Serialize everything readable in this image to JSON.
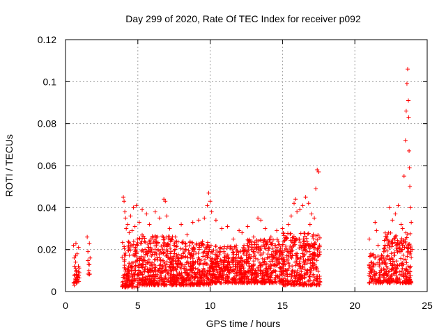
{
  "chart_data": {
    "type": "scatter",
    "title": "Day 299 of 2020, Rate Of TEC Index for receiver p092",
    "xlabel": "GPS time / hours",
    "ylabel": "ROTI / TECUs",
    "xlim": [
      0,
      25
    ],
    "ylim": [
      0,
      0.12
    ],
    "xticks": [
      0,
      5,
      10,
      15,
      20,
      25
    ],
    "yticks": [
      0,
      0.02,
      0.04,
      0.06,
      0.08,
      0.1,
      0.12
    ],
    "xtick_labels": [
      "0",
      "5",
      "10",
      "15",
      "20",
      "25"
    ],
    "ytick_labels": [
      "0",
      "0.02",
      "0.04",
      "0.06",
      "0.08",
      "0.1",
      "0.12"
    ],
    "grid": true,
    "marker": "plus",
    "color": "#ff0000",
    "series": [
      {
        "points": [
          [
            0.55,
            0.022
          ],
          [
            0.6,
            0.016
          ],
          [
            0.62,
            0.012
          ],
          [
            0.65,
            0.008
          ],
          [
            0.68,
            0.006
          ],
          [
            0.7,
            0.014
          ],
          [
            0.72,
            0.023
          ],
          [
            0.75,
            0.01
          ],
          [
            0.78,
            0.005
          ],
          [
            0.8,
            0.018
          ],
          [
            0.85,
            0.007
          ],
          [
            0.9,
            0.021
          ],
          [
            0.95,
            0.009
          ],
          [
            0.6,
            0.003
          ],
          [
            0.7,
            0.017
          ],
          [
            1.5,
            0.026
          ],
          [
            1.55,
            0.019
          ],
          [
            1.6,
            0.013
          ],
          [
            1.62,
            0.01
          ],
          [
            1.65,
            0.023
          ],
          [
            1.7,
            0.016
          ],
          [
            4.0,
            0.045
          ],
          [
            4.05,
            0.043
          ],
          [
            4.1,
            0.038
          ],
          [
            4.15,
            0.035
          ],
          [
            4.2,
            0.03
          ],
          [
            4.3,
            0.032
          ],
          [
            4.4,
            0.028
          ],
          [
            4.5,
            0.036
          ],
          [
            4.6,
            0.029
          ],
          [
            4.7,
            0.04
          ],
          [
            4.8,
            0.031
          ],
          [
            4.9,
            0.041
          ],
          [
            5.1,
            0.033
          ],
          [
            5.3,
            0.039
          ],
          [
            5.6,
            0.037
          ],
          [
            5.8,
            0.032
          ],
          [
            6.2,
            0.038
          ],
          [
            6.5,
            0.035
          ],
          [
            6.8,
            0.044
          ],
          [
            6.9,
            0.043
          ],
          [
            7.0,
            0.036
          ],
          [
            7.2,
            0.03
          ],
          [
            7.6,
            0.026
          ],
          [
            8.0,
            0.032
          ],
          [
            8.4,
            0.027
          ],
          [
            8.8,
            0.033
          ],
          [
            9.2,
            0.034
          ],
          [
            9.6,
            0.035
          ],
          [
            9.8,
            0.041
          ],
          [
            9.9,
            0.047
          ],
          [
            10.0,
            0.043
          ],
          [
            10.1,
            0.038
          ],
          [
            10.4,
            0.034
          ],
          [
            10.8,
            0.03
          ],
          [
            11.2,
            0.031
          ],
          [
            11.6,
            0.025
          ],
          [
            12.0,
            0.029
          ],
          [
            12.2,
            0.028
          ],
          [
            12.6,
            0.031
          ],
          [
            13.0,
            0.026
          ],
          [
            13.3,
            0.035
          ],
          [
            13.5,
            0.034
          ],
          [
            13.8,
            0.03
          ],
          [
            14.2,
            0.026
          ],
          [
            14.6,
            0.029
          ],
          [
            15.0,
            0.03
          ],
          [
            15.4,
            0.032
          ],
          [
            15.6,
            0.036
          ],
          [
            15.8,
            0.042
          ],
          [
            15.9,
            0.044
          ],
          [
            16.0,
            0.038
          ],
          [
            16.2,
            0.039
          ],
          [
            16.4,
            0.041
          ],
          [
            16.6,
            0.045
          ],
          [
            16.8,
            0.042
          ],
          [
            17.0,
            0.037
          ],
          [
            17.2,
            0.035
          ],
          [
            17.4,
            0.058
          ],
          [
            17.5,
            0.057
          ],
          [
            17.3,
            0.049
          ],
          [
            16.9,
            0.032
          ],
          [
            21.0,
            0.025
          ],
          [
            21.1,
            0.018
          ],
          [
            21.2,
            0.012
          ],
          [
            21.3,
            0.008
          ],
          [
            21.4,
            0.033
          ],
          [
            21.5,
            0.029
          ],
          [
            21.6,
            0.022
          ],
          [
            21.7,
            0.015
          ],
          [
            22.0,
            0.016
          ],
          [
            22.2,
            0.026
          ],
          [
            22.4,
            0.04
          ],
          [
            22.6,
            0.034
          ],
          [
            22.8,
            0.037
          ],
          [
            23.0,
            0.041
          ],
          [
            23.2,
            0.032
          ],
          [
            23.3,
            0.03
          ],
          [
            23.4,
            0.055
          ],
          [
            23.5,
            0.072
          ],
          [
            23.55,
            0.086
          ],
          [
            23.6,
            0.099
          ],
          [
            23.65,
            0.106
          ],
          [
            23.7,
            0.091
          ],
          [
            23.72,
            0.083
          ],
          [
            23.75,
            0.067
          ],
          [
            23.78,
            0.059
          ],
          [
            23.8,
            0.05
          ],
          [
            23.85,
            0.04
          ],
          [
            23.9,
            0.033
          ],
          [
            23.95,
            0.02
          ]
        ],
        "bands": [
          {
            "x": [
              0.55,
              0.95
            ],
            "y": [
              0.004,
              0.013
            ],
            "n": 25
          },
          {
            "x": [
              1.5,
              1.7
            ],
            "y": [
              0.008,
              0.015
            ],
            "n": 6
          },
          {
            "x": [
              3.9,
              5.0
            ],
            "y": [
              0.002,
              0.025
            ],
            "n": 160
          },
          {
            "x": [
              5.0,
              7.5
            ],
            "y": [
              0.003,
              0.027
            ],
            "n": 380
          },
          {
            "x": [
              7.5,
              10.0
            ],
            "y": [
              0.003,
              0.024
            ],
            "n": 360
          },
          {
            "x": [
              10.0,
              12.5
            ],
            "y": [
              0.004,
              0.022
            ],
            "n": 360
          },
          {
            "x": [
              12.5,
              15.0
            ],
            "y": [
              0.004,
              0.025
            ],
            "n": 360
          },
          {
            "x": [
              15.0,
              17.6
            ],
            "y": [
              0.003,
              0.028
            ],
            "n": 380
          },
          {
            "x": [
              20.9,
              22.0
            ],
            "y": [
              0.004,
              0.018
            ],
            "n": 90
          },
          {
            "x": [
              22.0,
              23.9
            ],
            "y": [
              0.004,
              0.028
            ],
            "n": 260
          }
        ]
      }
    ]
  }
}
